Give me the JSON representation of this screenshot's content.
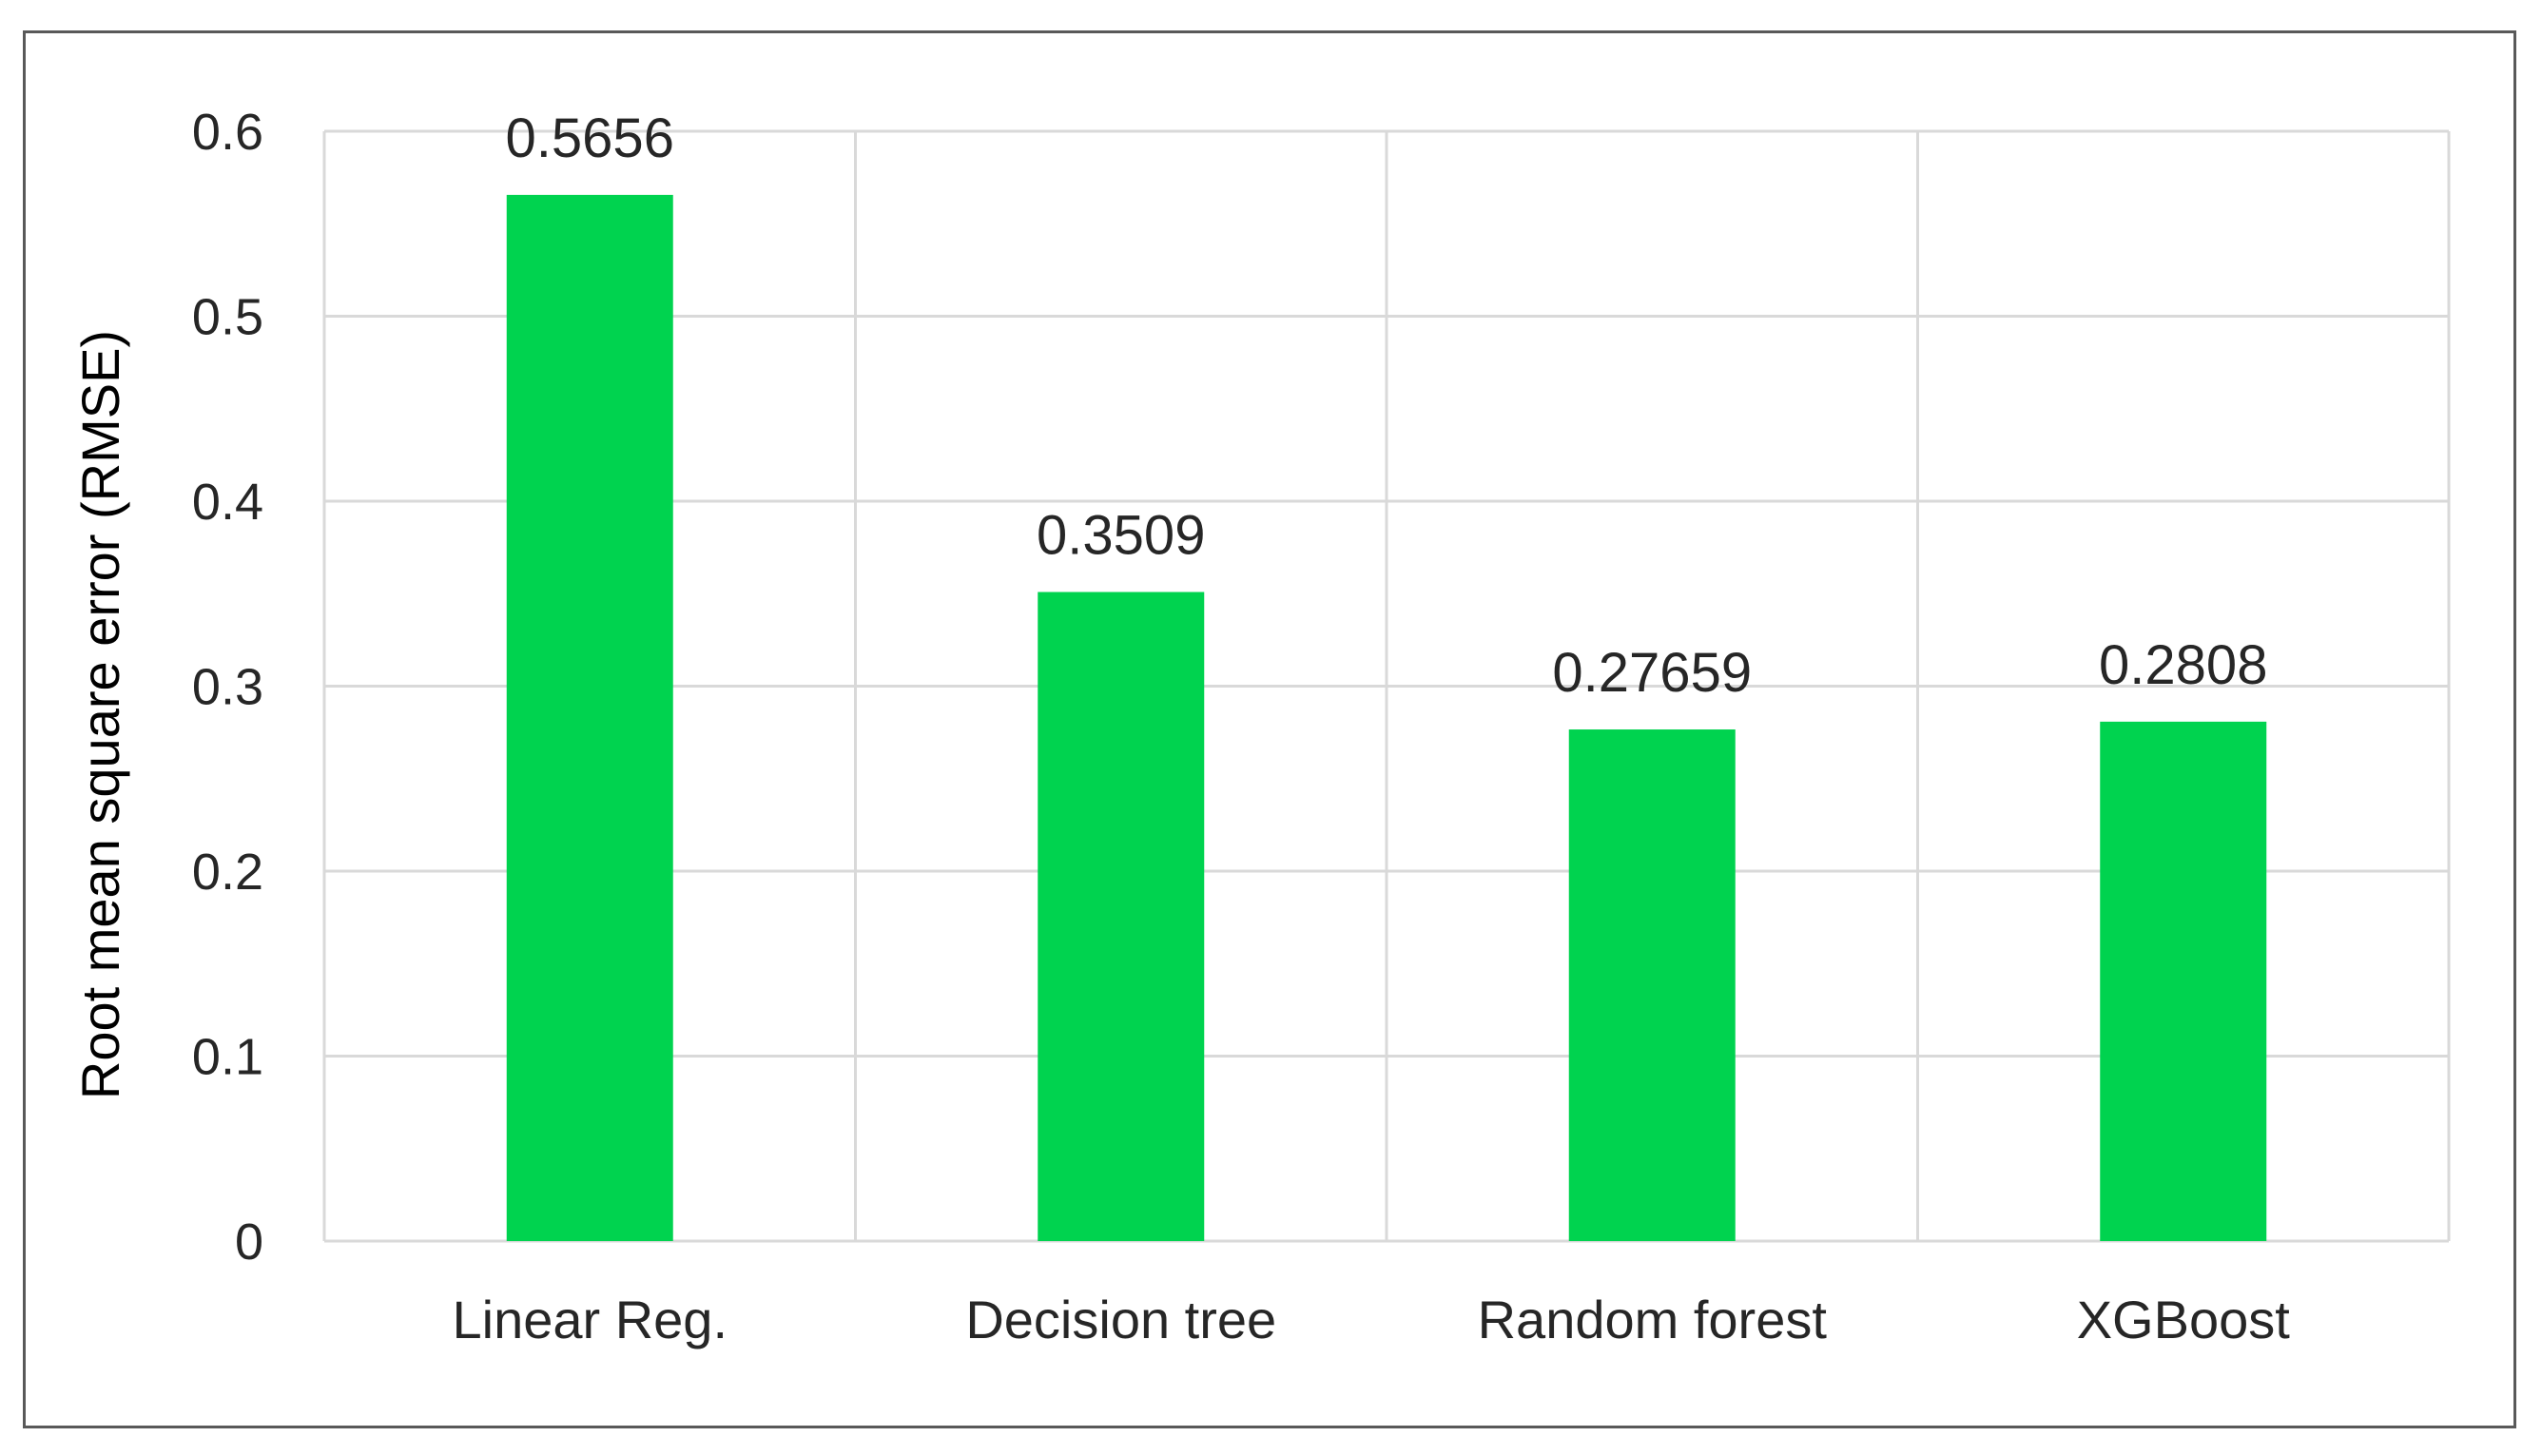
{
  "chart_data": {
    "type": "bar",
    "categories": [
      "Linear Reg.",
      "Decision tree",
      "Random forest",
      "XGBoost"
    ],
    "values": [
      0.5656,
      0.3509,
      0.27659,
      0.2808
    ],
    "value_labels": [
      "0.5656",
      "0.3509",
      "0.27659",
      "0.2808"
    ],
    "title": "",
    "xlabel": "",
    "ylabel": "Root mean square error (RMSE)",
    "ylim": [
      0,
      0.6
    ],
    "yticks": [
      0,
      0.1,
      0.2,
      0.3,
      0.4,
      0.5,
      0.6
    ],
    "ytick_labels": [
      "0",
      "0.1",
      "0.2",
      "0.3",
      "0.4",
      "0.5",
      "0.6"
    ],
    "grid": true,
    "legend": "none",
    "bar_color": "#00d34f",
    "grid_color": "#d9d9d9"
  }
}
